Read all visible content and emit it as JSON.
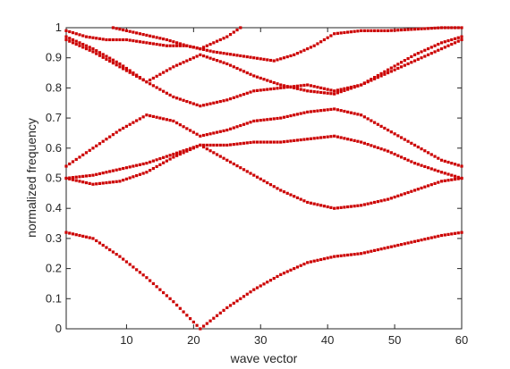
{
  "chart_data": {
    "type": "scatter",
    "title": "",
    "xlabel": "wave vector",
    "ylabel": "normalized frequency",
    "xlim": [
      1,
      60
    ],
    "ylim": [
      0,
      1
    ],
    "xticks": [
      10,
      20,
      30,
      40,
      50,
      60
    ],
    "yticks": [
      0,
      0.1,
      0.2,
      0.3,
      0.4,
      0.5,
      0.6,
      0.7,
      0.8,
      0.9,
      1
    ],
    "grid": false,
    "legend": "none",
    "marker_color": "#cc0000",
    "series": [
      {
        "x": [
          1,
          5,
          9,
          13,
          17,
          21,
          25,
          29,
          33,
          37,
          41,
          45,
          49,
          53,
          57,
          60
        ],
        "values": [
          0.32,
          0.3,
          0.24,
          0.17,
          0.09,
          0.0,
          0.07,
          0.13,
          0.18,
          0.22,
          0.24,
          0.25,
          0.27,
          0.29,
          0.31,
          0.32
        ]
      },
      {
        "x": [
          1,
          5,
          9,
          13,
          17,
          21,
          25,
          29,
          33,
          37,
          41,
          45,
          49,
          53,
          57,
          60
        ],
        "values": [
          0.5,
          0.48,
          0.49,
          0.52,
          0.57,
          0.61,
          0.56,
          0.51,
          0.46,
          0.42,
          0.4,
          0.41,
          0.43,
          0.46,
          0.49,
          0.5
        ]
      },
      {
        "x": [
          1,
          5,
          9,
          13,
          17,
          21,
          25,
          29,
          33,
          37,
          41,
          45,
          49,
          53,
          57,
          60
        ],
        "values": [
          0.5,
          0.51,
          0.53,
          0.55,
          0.58,
          0.61,
          0.61,
          0.62,
          0.62,
          0.63,
          0.64,
          0.62,
          0.59,
          0.55,
          0.52,
          0.5
        ]
      },
      {
        "x": [
          1,
          5,
          9,
          13,
          17,
          21,
          25,
          29,
          33,
          37,
          41,
          45,
          49,
          53,
          57,
          60
        ],
        "values": [
          0.54,
          0.6,
          0.66,
          0.71,
          0.69,
          0.64,
          0.66,
          0.69,
          0.7,
          0.72,
          0.73,
          0.71,
          0.66,
          0.61,
          0.56,
          0.54
        ]
      },
      {
        "x": [
          1,
          5,
          9,
          13,
          17,
          21,
          25,
          29,
          33,
          37,
          41,
          45,
          49,
          53,
          57,
          60
        ],
        "values": [
          0.96,
          0.92,
          0.87,
          0.82,
          0.77,
          0.74,
          0.76,
          0.79,
          0.8,
          0.81,
          0.79,
          0.81,
          0.85,
          0.89,
          0.93,
          0.96
        ]
      },
      {
        "x": [
          1,
          5,
          9,
          13,
          17,
          21,
          25,
          29,
          33,
          37,
          41,
          45,
          49,
          53,
          57,
          60
        ],
        "values": [
          0.97,
          0.93,
          0.88,
          0.82,
          0.87,
          0.91,
          0.88,
          0.84,
          0.81,
          0.79,
          0.78,
          0.81,
          0.86,
          0.91,
          0.95,
          0.97
        ]
      },
      {
        "x": [
          8,
          12,
          16,
          19,
          21,
          23,
          26,
          29,
          32,
          35,
          38,
          41,
          45,
          49,
          53,
          57,
          60
        ],
        "values": [
          1.0,
          0.98,
          0.96,
          0.94,
          0.93,
          0.92,
          0.91,
          0.9,
          0.89,
          0.91,
          0.94,
          0.98,
          0.99,
          0.99,
          0.995,
          1.0,
          1.0
        ]
      },
      {
        "x": [
          1,
          4,
          7,
          10,
          13,
          16,
          19,
          21,
          23,
          25,
          27
        ],
        "values": [
          0.99,
          0.97,
          0.96,
          0.96,
          0.95,
          0.94,
          0.94,
          0.93,
          0.95,
          0.97,
          1.0
        ]
      }
    ]
  }
}
